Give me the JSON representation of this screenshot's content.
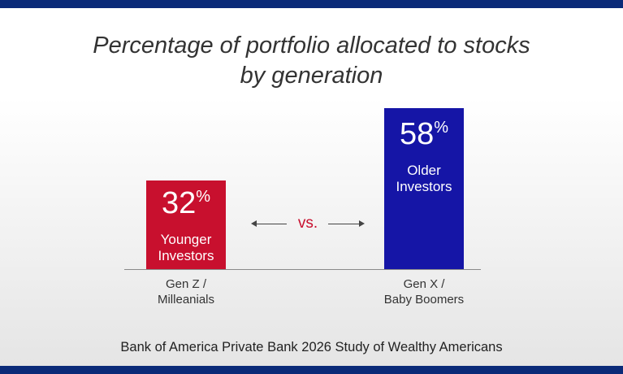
{
  "title_line1": "Percentage of portfolio allocated to stocks",
  "title_line2": "by generation",
  "vs_label": "vs.",
  "source": "Bank of America Private Bank 2026 Study of Wealthy Americans",
  "colors": {
    "younger": "#c8102e",
    "older": "#1515a6",
    "band": "#0a2a78"
  },
  "chart_data": {
    "type": "bar",
    "categories": [
      "Gen Z / Milleanials",
      "Gen X / Baby Boomers"
    ],
    "values": [
      32,
      58
    ],
    "unit": "%",
    "title": "Percentage of portfolio allocated to stocks by generation",
    "bars": [
      {
        "value_text": "32",
        "unit": "%",
        "label_line1": "Younger",
        "label_line2": "Investors",
        "cat_line1": "Gen Z /",
        "cat_line2": "Milleanials"
      },
      {
        "value_text": "58",
        "unit": "%",
        "label_line1": "Older",
        "label_line2": "Investors",
        "cat_line1": "Gen X /",
        "cat_line2": "Baby Boomers"
      }
    ]
  }
}
